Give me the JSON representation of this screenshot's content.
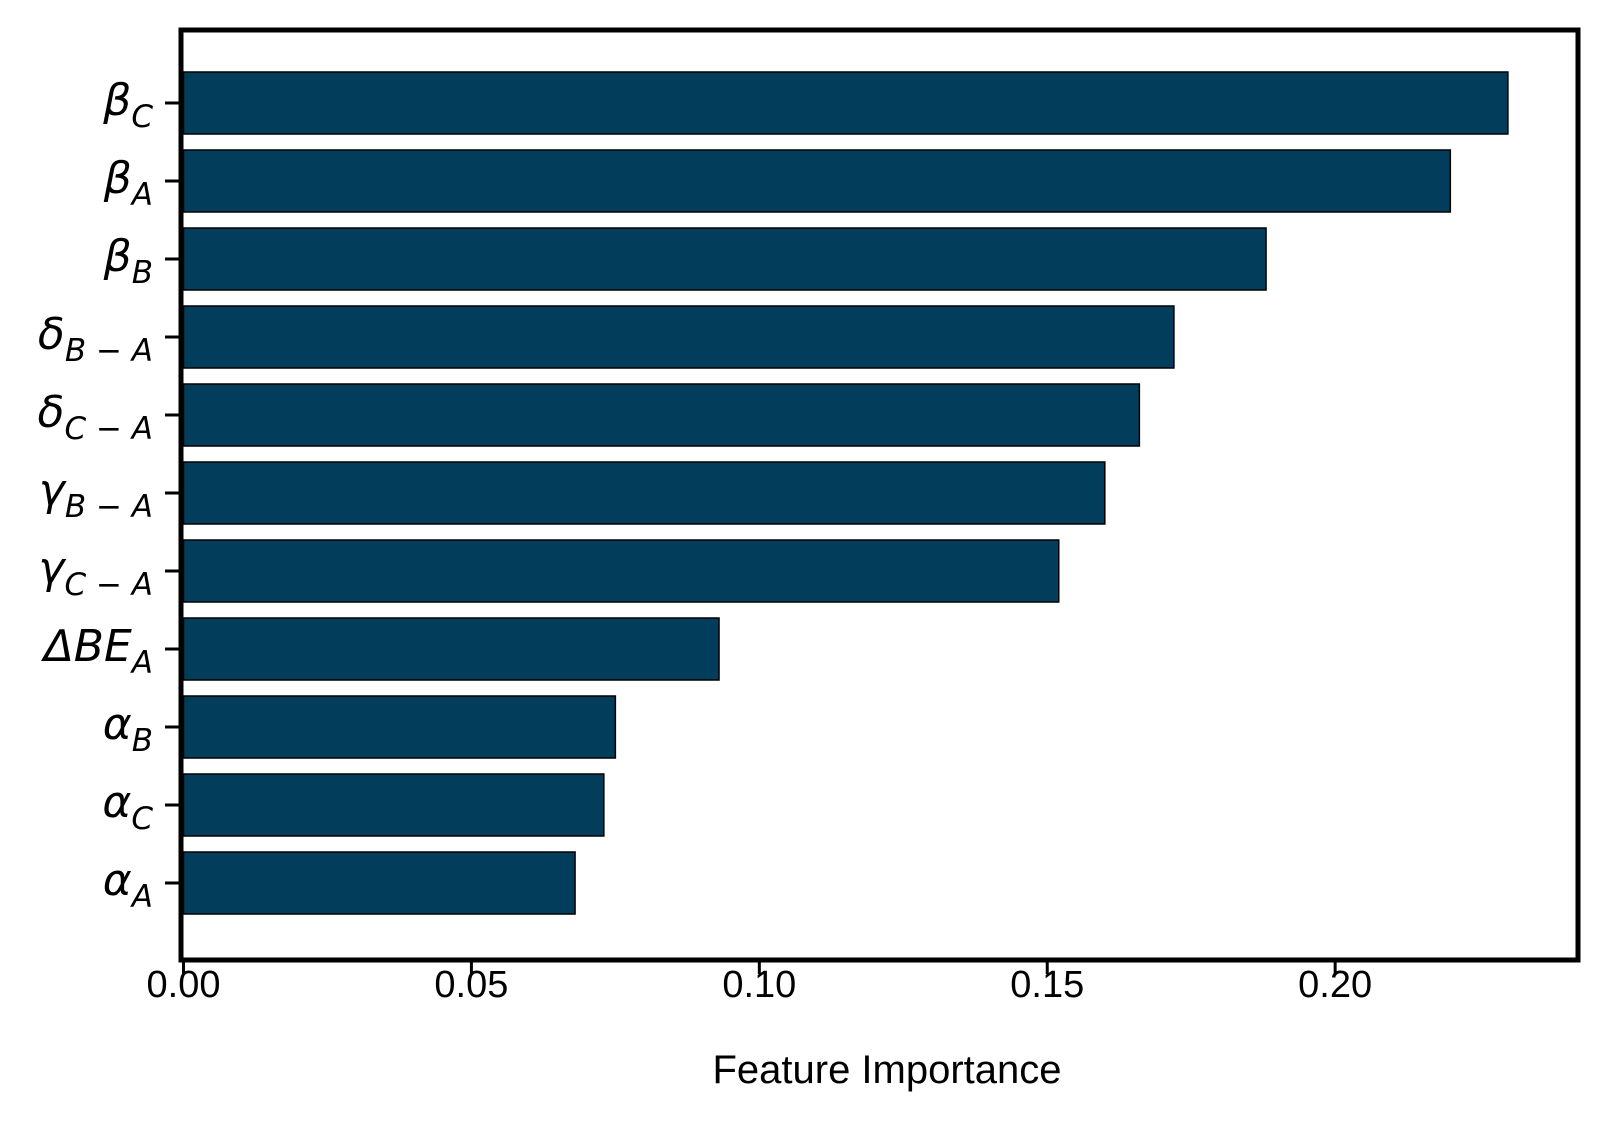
{
  "chart_data": {
    "type": "bar",
    "orientation": "horizontal",
    "title": "",
    "xlabel": "Feature Importance",
    "ylabel": "",
    "categories": [
      {
        "base": "β",
        "sub": "C"
      },
      {
        "base": "β",
        "sub": "A"
      },
      {
        "base": "β",
        "sub": "B"
      },
      {
        "base": "δ",
        "sub": "B − A"
      },
      {
        "base": "δ",
        "sub": "C − A"
      },
      {
        "base": "γ",
        "sub": "B − A"
      },
      {
        "base": "γ",
        "sub": "C − A"
      },
      {
        "base": "ΔBE",
        "sub": "A"
      },
      {
        "base": "α",
        "sub": "B"
      },
      {
        "base": "α",
        "sub": "C"
      },
      {
        "base": "α",
        "sub": "A"
      }
    ],
    "values": [
      0.23,
      0.22,
      0.188,
      0.172,
      0.166,
      0.16,
      0.152,
      0.093,
      0.075,
      0.073,
      0.068
    ],
    "xlim": [
      0.0,
      0.242
    ],
    "xticks": [
      0.0,
      0.05,
      0.1,
      0.15,
      0.2
    ],
    "xtick_labels": [
      "0.00",
      "0.05",
      "0.10",
      "0.15",
      "0.20"
    ],
    "grid": false,
    "legend": "none",
    "bar_color": "#023E5B",
    "bar_edge_color": "#000000"
  }
}
